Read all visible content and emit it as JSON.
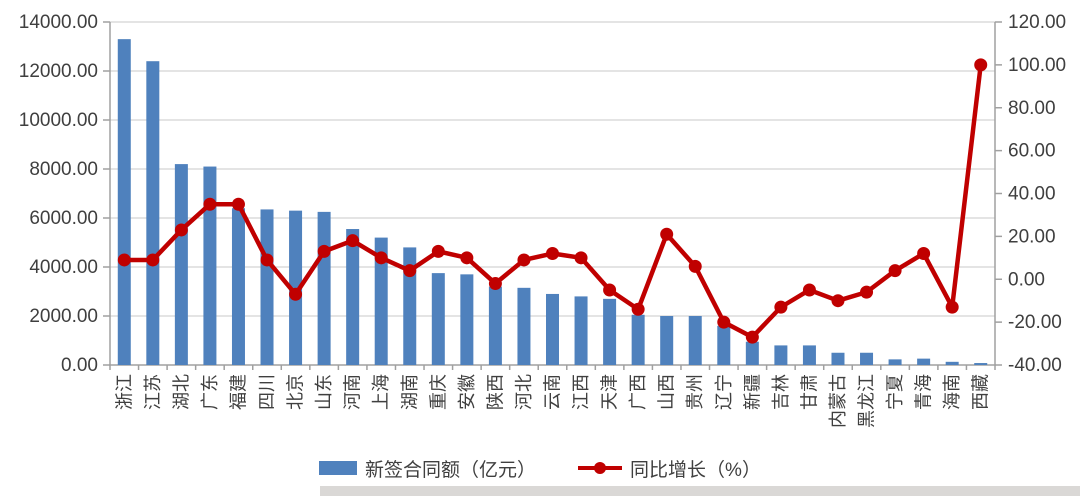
{
  "chart_data": {
    "type": "bar",
    "subtype": "bar-line-combo",
    "title": "",
    "categories": [
      "浙江",
      "江苏",
      "湖北",
      "广东",
      "福建",
      "四川",
      "北京",
      "山东",
      "河南",
      "上海",
      "湖南",
      "重庆",
      "安徽",
      "陕西",
      "河北",
      "云南",
      "江西",
      "天津",
      "广西",
      "山西",
      "贵州",
      "辽宁",
      "新疆",
      "吉林",
      "甘肃",
      "内蒙古",
      "黑龙江",
      "宁夏",
      "青海",
      "海南",
      "西藏"
    ],
    "series": [
      {
        "name": "新签合同额（亿元）",
        "type": "bar",
        "axis": "left",
        "color": "#4f81bd",
        "values": [
          13300,
          12400,
          8200,
          8100,
          6400,
          6350,
          6300,
          6250,
          5550,
          5200,
          4800,
          3750,
          3700,
          3200,
          3150,
          2900,
          2800,
          2700,
          2050,
          2000,
          2000,
          1600,
          950,
          800,
          800,
          500,
          500,
          230,
          260,
          130,
          80
        ]
      },
      {
        "name": "同比增长（%）",
        "type": "line",
        "axis": "right",
        "color": "#c00000",
        "values": [
          9,
          9,
          23,
          35,
          35,
          9,
          -7,
          13,
          18,
          10,
          4,
          13,
          10,
          -2,
          9,
          12,
          10,
          -5,
          -14,
          21,
          6,
          -20,
          -27,
          -13,
          -5,
          -10,
          -6,
          4,
          12,
          -13,
          100
        ]
      }
    ],
    "left_axis": {
      "min": 0,
      "max": 14000,
      "step": 2000,
      "tick_format": "0.00"
    },
    "right_axis": {
      "min": -40,
      "max": 120,
      "step": 20,
      "tick_format": "0.00"
    },
    "grid": true,
    "legend_position": "bottom",
    "category_label_rotation": -90
  },
  "colors": {
    "grid": "#c8c8c8",
    "axis": "#a0a0a0",
    "text": "#3f3f3f",
    "background": "#ffffff",
    "bottom_strip": "#dad8d6"
  }
}
